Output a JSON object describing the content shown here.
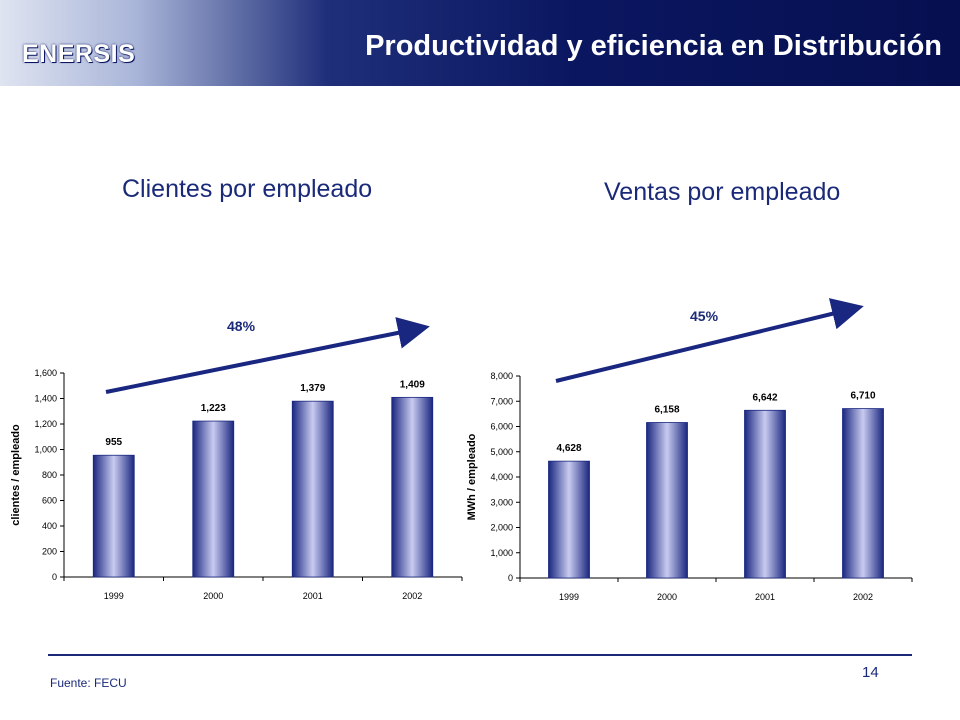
{
  "header": {
    "logo_text": "ENERSIS",
    "title": "Productividad y eficiencia en Distribución"
  },
  "footer": {
    "source": "Fuente: FECU",
    "page_number": "14"
  },
  "colors": {
    "header_dark": "#0a1660",
    "bar_edge": "#1a2780",
    "bar_center": "#c9cbf0",
    "text_blue": "#1a2a78"
  },
  "chart_data": [
    {
      "type": "bar",
      "title": "Clientes por empleado",
      "ylabel": "clientes / empleado",
      "categories": [
        "1999",
        "2000",
        "2001",
        "2002"
      ],
      "values": [
        955,
        1223,
        1379,
        1409
      ],
      "value_labels": [
        "955",
        "1,223",
        "1,379",
        "1,409"
      ],
      "ylim": [
        0,
        1600
      ],
      "yticks": [
        0,
        200,
        400,
        600,
        800,
        1000,
        1200,
        1400,
        1600
      ],
      "ytick_labels": [
        "0",
        "200",
        "400",
        "600",
        "800",
        "1,000",
        "1,200",
        "1,400",
        "1,600"
      ],
      "growth_label": "48%",
      "grid": false,
      "legend": "none"
    },
    {
      "type": "bar",
      "title": "Ventas por empleado",
      "ylabel": "MWh / empleado",
      "categories": [
        "1999",
        "2000",
        "2001",
        "2002"
      ],
      "values": [
        4628,
        6158,
        6642,
        6710
      ],
      "value_labels": [
        "4,628",
        "6,158",
        "6,642",
        "6,710"
      ],
      "ylim": [
        0,
        8000
      ],
      "yticks": [
        0,
        1000,
        2000,
        3000,
        4000,
        5000,
        6000,
        7000,
        8000
      ],
      "ytick_labels": [
        "0",
        "1,000",
        "2,000",
        "3,000",
        "4,000",
        "5,000",
        "6,000",
        "7,000",
        "8,000"
      ],
      "growth_label": "45%",
      "grid": false,
      "legend": "none"
    }
  ]
}
